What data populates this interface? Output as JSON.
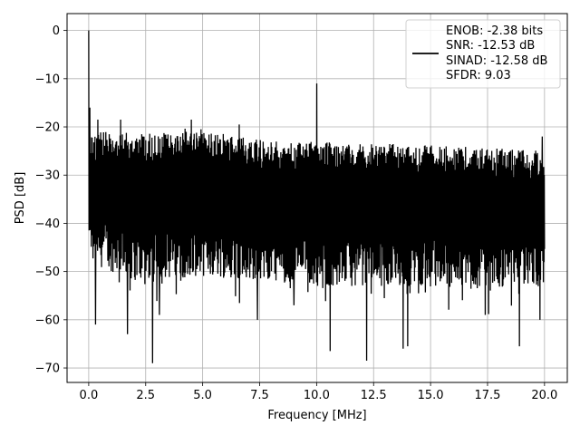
{
  "chart_data": {
    "type": "line",
    "xlabel": "Frequency [MHz]",
    "ylabel": "PSD [dB]",
    "xlim": [
      -0.95,
      21.0
    ],
    "ylim": [
      -73.0,
      3.5
    ],
    "xticks": [
      0.0,
      2.5,
      5.0,
      7.5,
      10.0,
      12.5,
      15.0,
      17.5,
      20.0
    ],
    "xtick_labels": [
      "0.0",
      "2.5",
      "5.0",
      "7.5",
      "10.0",
      "12.5",
      "15.0",
      "17.5",
      "20.0"
    ],
    "yticks": [
      0,
      -10,
      -20,
      -30,
      -40,
      -50,
      -60,
      -70
    ],
    "ytick_labels": [
      "0",
      "−10",
      "−20",
      "−30",
      "−40",
      "−50",
      "−60",
      "−70"
    ],
    "grid": true,
    "legend_position": "top-right",
    "series": [
      {
        "label_lines": [
          "ENOB: -2.38 bits",
          "SNR: -12.53 dB",
          "SINAD: -12.58 dB",
          "SFDR: 9.03"
        ],
        "color": "#000000",
        "x_range": [
          0.0,
          20.0
        ],
        "noise_top_envelope": [
          [
            0.0,
            -21
          ],
          [
            0.5,
            -21
          ],
          [
            1.5,
            -21
          ],
          [
            3.0,
            -21.5
          ],
          [
            4.5,
            -20
          ],
          [
            6.0,
            -21.5
          ],
          [
            8.0,
            -23
          ],
          [
            10.0,
            -23
          ],
          [
            12.0,
            -23.5
          ],
          [
            14.0,
            -23.5
          ],
          [
            16.0,
            -24
          ],
          [
            18.0,
            -24.5
          ],
          [
            20.0,
            -25
          ]
        ],
        "noise_bottom_envelope": [
          [
            0.0,
            -48
          ],
          [
            2.0,
            -52
          ],
          [
            5.0,
            -51
          ],
          [
            8.0,
            -52
          ],
          [
            10.0,
            -53
          ],
          [
            12.5,
            -53
          ],
          [
            15.0,
            -53
          ],
          [
            17.5,
            -54
          ],
          [
            20.0,
            -53
          ]
        ],
        "peaks": [
          {
            "x": 0.0,
            "y": 0.0
          },
          {
            "x": 0.05,
            "y": -16.0
          },
          {
            "x": 0.4,
            "y": -18.5
          },
          {
            "x": 1.4,
            "y": -18.5
          },
          {
            "x": 4.5,
            "y": -18.5
          },
          {
            "x": 6.6,
            "y": -19.5
          },
          {
            "x": 10.0,
            "y": -11.0
          },
          {
            "x": 19.9,
            "y": -22.0
          }
        ],
        "notches": [
          {
            "x": 0.3,
            "y": -61.0
          },
          {
            "x": 1.7,
            "y": -63.0
          },
          {
            "x": 2.8,
            "y": -69.0
          },
          {
            "x": 3.1,
            "y": -59.0
          },
          {
            "x": 7.4,
            "y": -60.0
          },
          {
            "x": 9.0,
            "y": -57.0
          },
          {
            "x": 10.6,
            "y": -66.5
          },
          {
            "x": 12.2,
            "y": -68.5
          },
          {
            "x": 13.8,
            "y": -66.0
          },
          {
            "x": 14.0,
            "y": -65.5
          },
          {
            "x": 17.4,
            "y": -59.0
          },
          {
            "x": 18.9,
            "y": -65.5
          },
          {
            "x": 19.8,
            "y": -60.0
          }
        ]
      }
    ]
  }
}
